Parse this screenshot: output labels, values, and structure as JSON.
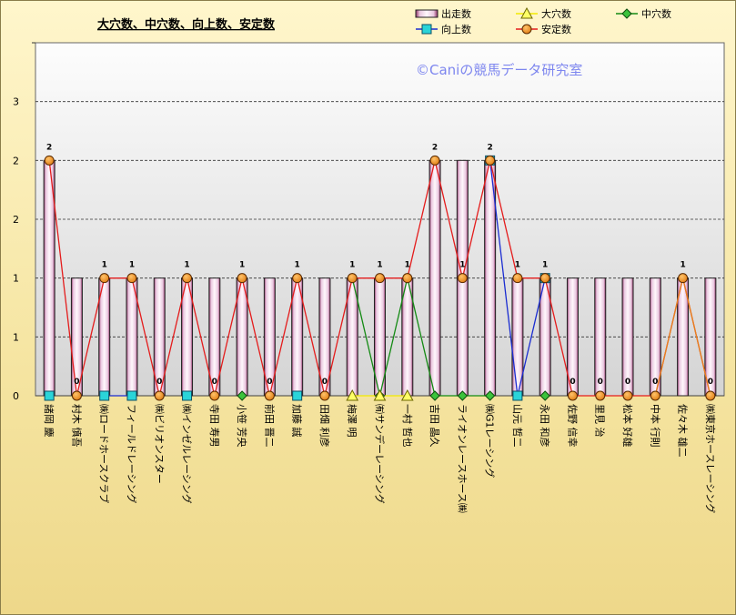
{
  "chart_data": {
    "type": "bar",
    "title": "大穴数、中穴数、向上数、安定数",
    "watermark": "©Caniの競馬データ研究室",
    "ylim": [
      0,
      3
    ],
    "y_ticks": [
      "0",
      "1",
      "1",
      "2",
      "2",
      "3"
    ],
    "y_tick_values": [
      0,
      0.5,
      1,
      1.5,
      2,
      2.5
    ],
    "grid": true,
    "legend_position": "top",
    "categories": [
      "諸岡 慶",
      "村木 慎吾",
      "㈱ロードホースクラブ",
      "フィールドレーシング",
      "㈱ビリオンスター",
      "㈱インゼルレーシング",
      "寺田 寿男",
      "小笹 芳央",
      "前田 晋二",
      "加藤 誠",
      "田畑 利彦",
      "梅澤 明",
      "㈲サンデーレーシング",
      "一村 哲也",
      "吉田 晶久",
      "ライオンレースホース㈱",
      "㈱G1レーシング",
      "山元 哲二",
      "永田 和彦",
      "佐野 信幸",
      "里見 治",
      "松本 好雄",
      "中本 行則",
      "佐々木 雄二",
      "㈱東京ホースレーシング"
    ],
    "series": [
      {
        "name": "出走数",
        "kind": "bar",
        "color": "#f3dff0",
        "values": [
          2,
          1,
          1,
          1,
          1,
          1,
          1,
          1,
          1,
          1,
          1,
          1,
          1,
          1,
          2,
          2,
          2,
          1,
          1,
          1,
          1,
          1,
          1,
          1,
          1
        ]
      },
      {
        "name": "大穴数",
        "kind": "line",
        "color": "#f2ea00",
        "marker_color": "#ffff66",
        "marker": "triangle",
        "values": [
          null,
          null,
          null,
          null,
          null,
          null,
          null,
          null,
          null,
          null,
          null,
          0,
          0,
          0,
          null,
          null,
          null,
          null,
          null,
          null,
          null,
          null,
          null,
          null,
          null
        ]
      },
      {
        "name": "中穴数",
        "kind": "line",
        "color": "#138a13",
        "marker_color": "#3cc23c",
        "marker": "diamond",
        "values": [
          null,
          null,
          null,
          null,
          null,
          null,
          null,
          0,
          null,
          null,
          null,
          1,
          0,
          1,
          0,
          0,
          0,
          null,
          0,
          null,
          null,
          null,
          null,
          null,
          null
        ]
      },
      {
        "name": "向上数",
        "kind": "line",
        "color": "#1a2cd1",
        "marker_color": "#2ad4d8",
        "marker": "square",
        "values": [
          0,
          null,
          0,
          0,
          null,
          0,
          null,
          null,
          null,
          0,
          null,
          null,
          null,
          null,
          null,
          null,
          2,
          0,
          1,
          null,
          null,
          null,
          null,
          null,
          null
        ]
      },
      {
        "name": "安定数",
        "kind": "line",
        "color": "#e41c1c",
        "marker_color": "#f29322",
        "marker": "circle",
        "values": [
          2,
          0,
          1,
          1,
          0,
          1,
          0,
          1,
          0,
          1,
          0,
          1,
          1,
          1,
          2,
          1,
          2,
          1,
          1,
          0,
          0,
          0,
          0,
          1,
          0
        ]
      },
      {
        "name": "",
        "kind": "line",
        "color": "#e8811c",
        "values": [
          null,
          null,
          null,
          null,
          null,
          null,
          null,
          null,
          null,
          null,
          null,
          null,
          null,
          null,
          null,
          null,
          null,
          null,
          null,
          null,
          null,
          null,
          0,
          1,
          0
        ]
      }
    ],
    "data_labels": [
      "2",
      "0",
      "1",
      "1",
      "0",
      "1",
      "0",
      "1",
      "0",
      "1",
      "0",
      "1",
      "1",
      "1",
      "2",
      "1",
      "2",
      "1",
      "1",
      "0",
      "0",
      "0",
      "0",
      "1",
      "0"
    ]
  }
}
